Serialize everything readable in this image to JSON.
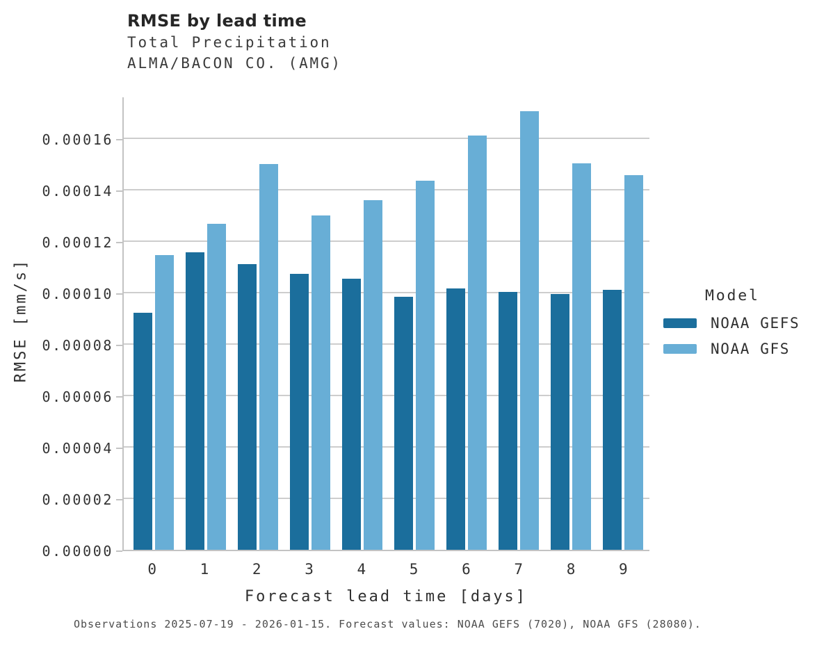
{
  "header": {
    "title": "RMSE by lead time",
    "subtitle_line1": "Total Precipitation",
    "subtitle_line2": "ALMA/BACON CO. (AMG)"
  },
  "chart_data": {
    "type": "bar",
    "title": "RMSE by lead time",
    "subtitle": [
      "Total Precipitation",
      "ALMA/BACON CO. (AMG)"
    ],
    "categories": [
      "0",
      "1",
      "2",
      "3",
      "4",
      "5",
      "6",
      "7",
      "8",
      "9"
    ],
    "series": [
      {
        "name": "NOAA GEFS",
        "color": "#1b6e9c",
        "values": [
          9.21e-05,
          0.0001158,
          0.0001112,
          0.0001073,
          0.0001055,
          9.84e-05,
          0.0001017,
          0.0001004,
          9.95e-05,
          0.0001011
        ]
      },
      {
        "name": "NOAA GFS",
        "color": "#68aed6",
        "values": [
          0.0001147,
          0.0001268,
          0.00015,
          0.0001301,
          0.0001359,
          0.0001434,
          0.0001611,
          0.0001706,
          0.0001503,
          0.0001457
        ]
      }
    ],
    "xlabel": "Forecast lead time [days]",
    "ylabel": "RMSE [mm/s]",
    "ylim": [
      0,
      0.0001765
    ],
    "ytick_step": 2e-05,
    "ytick_labels": [
      "0.00000",
      "0.00002",
      "0.00004",
      "0.00006",
      "0.00008",
      "0.00010",
      "0.00012",
      "0.00014",
      "0.00016"
    ],
    "grid": true,
    "legend_title": "Model",
    "legend_position": "center-right"
  },
  "legend": {
    "title": "Model",
    "items": [
      {
        "label": "NOAA GEFS",
        "color": "#1b6e9c"
      },
      {
        "label": "NOAA GFS",
        "color": "#68aed6"
      }
    ]
  },
  "caption": "Observations 2025-07-19 - 2026-01-15. Forecast values: NOAA GEFS (7020), NOAA GFS (28080)."
}
